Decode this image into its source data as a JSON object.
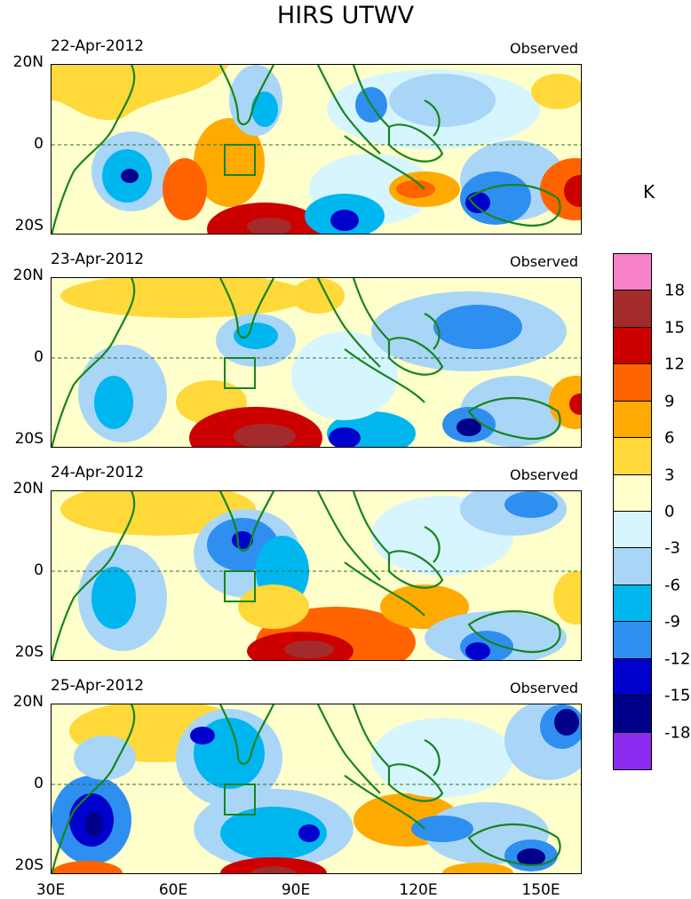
{
  "title": "HIRS UTWV",
  "units": "K",
  "y_labels": [
    "20N",
    "0",
    "20S"
  ],
  "x_labels": [
    "30E",
    "60E",
    "90E",
    "120E",
    "150E"
  ],
  "panels": [
    {
      "date": "22-Apr-2012",
      "label": "Observed"
    },
    {
      "date": "23-Apr-2012",
      "label": "Observed"
    },
    {
      "date": "24-Apr-2012",
      "label": "Observed"
    },
    {
      "date": "25-Apr-2012",
      "label": "Observed"
    }
  ],
  "colorbar": {
    "labels": [
      "18",
      "15",
      "12",
      "9",
      "6",
      "3",
      "0",
      "-3",
      "-6",
      "-9",
      "-12",
      "-15",
      "-18"
    ],
    "colors": [
      "#f782c8",
      "#a32b2b",
      "#cd0000",
      "#ff6400",
      "#ffaa00",
      "#ffd93a",
      "#ffffcc",
      "#d7f5ff",
      "#a9d6f7",
      "#00b6ef",
      "#2e8ff0",
      "#0000cd",
      "#00008b",
      "#8c2bf0"
    ]
  },
  "colors": {
    "coast": "#17851d",
    "equator": "#2f6d2f"
  }
}
